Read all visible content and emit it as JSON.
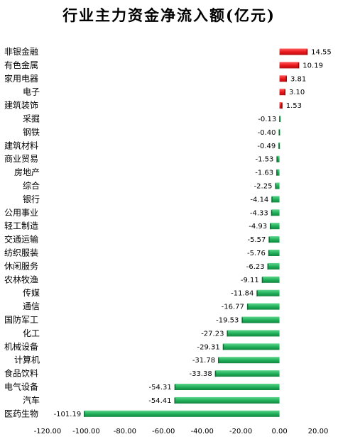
{
  "chart_data": {
    "type": "bar",
    "orientation": "horizontal",
    "title": "行业主力资金净流入额(亿元)",
    "xlabel": "",
    "ylabel": "",
    "xlim": [
      -120,
      20
    ],
    "xticks": [
      -120,
      -100,
      -80,
      -60,
      -40,
      -20,
      0,
      20
    ],
    "xtick_labels": [
      "-120.00",
      "-100.00",
      "-80.00",
      "-60.00",
      "-40.00",
      "-20.00",
      "0.00",
      "20.00"
    ],
    "grid": false,
    "legend": "none",
    "colors": {
      "positive": "#e8161a",
      "negative": "#1eae58"
    },
    "categories": [
      "非银金融",
      "有色金属",
      "家用电器",
      "电子",
      "建筑装饰",
      "采掘",
      "钢铁",
      "建筑材料",
      "商业贸易",
      "房地产",
      "综合",
      "银行",
      "公用事业",
      "轻工制造",
      "交通运输",
      "纺织服装",
      "休闲服务",
      "农林牧渔",
      "传媒",
      "通信",
      "国防军工",
      "化工",
      "机械设备",
      "计算机",
      "食品饮料",
      "电气设备",
      "汽车",
      "医药生物"
    ],
    "values": [
      14.55,
      10.19,
      3.81,
      3.1,
      1.53,
      -0.13,
      -0.4,
      -0.49,
      -1.53,
      -1.63,
      -2.25,
      -4.14,
      -4.33,
      -4.93,
      -5.57,
      -5.76,
      -6.23,
      -9.11,
      -11.84,
      -16.77,
      -19.53,
      -27.23,
      -29.31,
      -31.78,
      -33.38,
      -54.31,
      -54.41,
      -101.19
    ],
    "value_labels": [
      "14.55",
      "10.19",
      "3.81",
      "3.10",
      "1.53",
      "-0.13",
      "-0.40",
      "-0.49",
      "-1.53",
      "-1.63",
      "-2.25",
      "-4.14",
      "-4.33",
      "-4.93",
      "-5.57",
      "-5.76",
      "-6.23",
      "-9.11",
      "-11.84",
      "-16.77",
      "-19.53",
      "-27.23",
      "-29.31",
      "-31.78",
      "-33.38",
      "-54.31",
      "-54.41",
      "-101.19"
    ]
  }
}
